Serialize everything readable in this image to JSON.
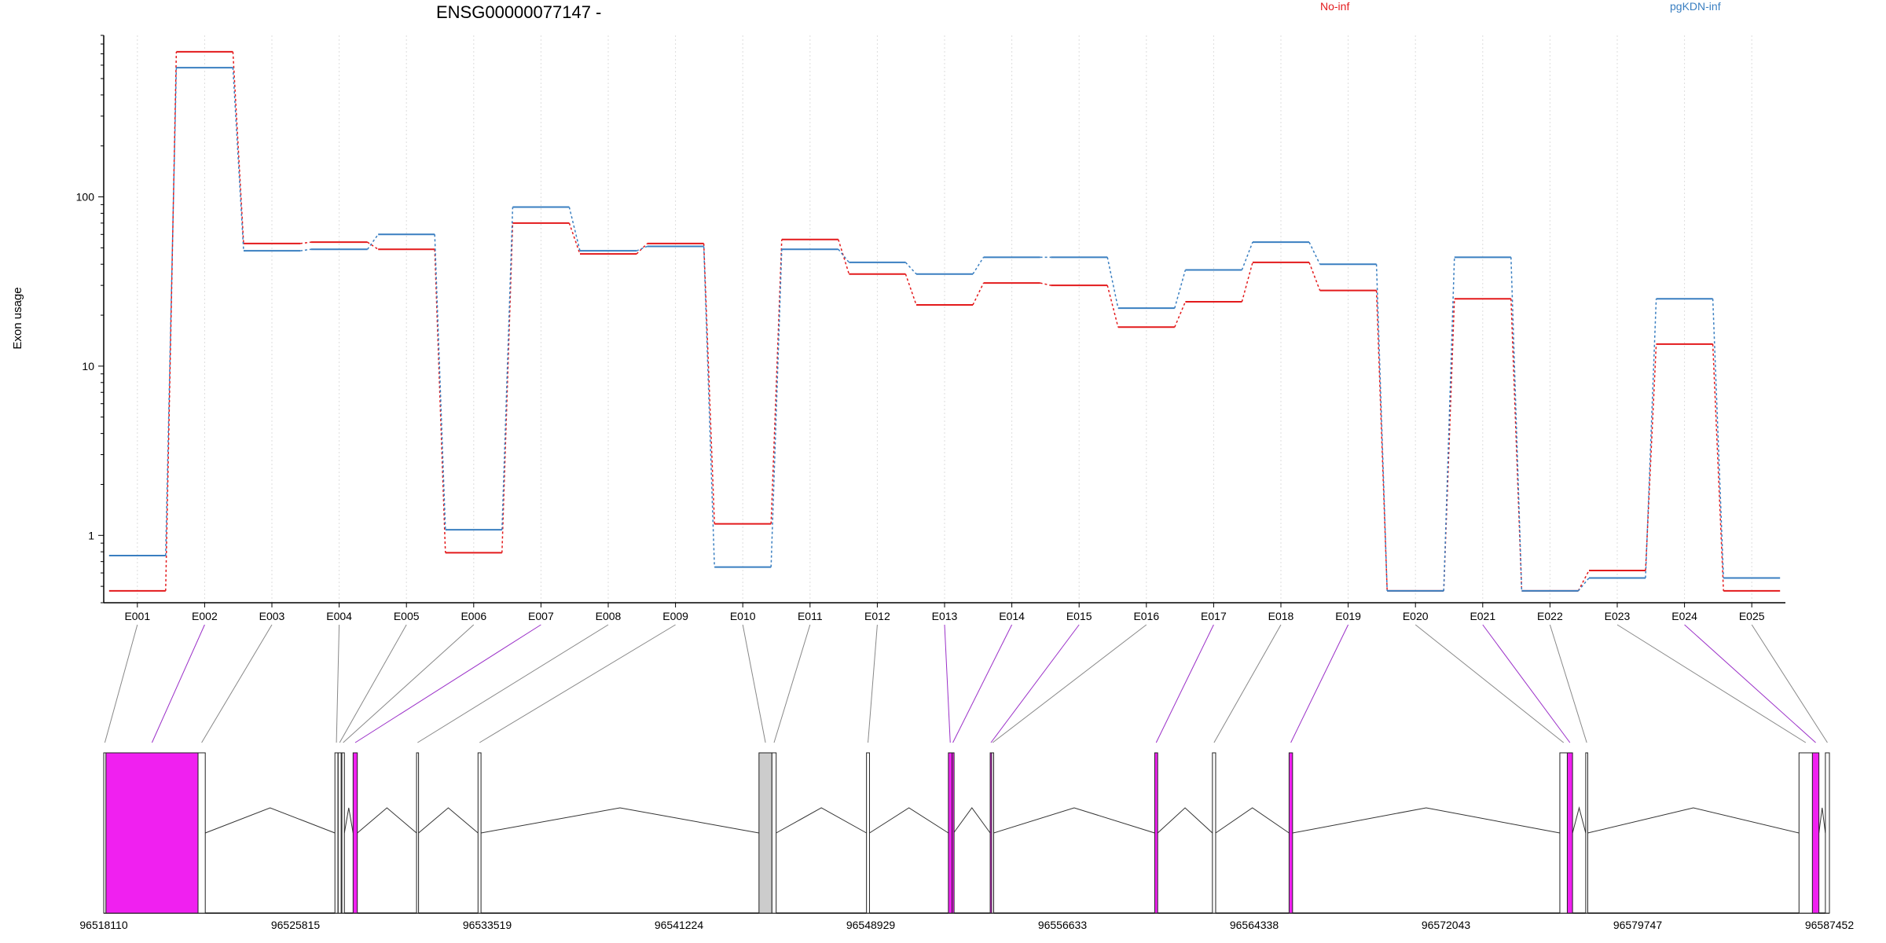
{
  "chart_data": {
    "type": "line",
    "title": "ENSG00000077147 -",
    "ylabel": "Exon usage",
    "yscale": "log",
    "ylim": [
      0.4,
      900
    ],
    "yticks": [
      1,
      10,
      100
    ],
    "ytick_labels": [
      "1",
      "10",
      "100"
    ],
    "grid": "vertical dotted per exon",
    "legend_position": "top-right",
    "categories": [
      "E001",
      "E002",
      "E003",
      "E004",
      "E005",
      "E006",
      "E007",
      "E008",
      "E009",
      "E010",
      "E011",
      "E012",
      "E013",
      "E014",
      "E015",
      "E016",
      "E017",
      "E018",
      "E019",
      "E020",
      "E021",
      "E022",
      "E023",
      "E024",
      "E025"
    ],
    "series": [
      {
        "name": "No-inf",
        "color": "#e31a1c",
        "values": [
          0.47,
          720,
          53,
          54,
          49,
          0.79,
          70,
          46,
          53,
          1.17,
          56,
          35,
          23,
          31,
          30,
          17,
          24,
          41,
          28,
          0.47,
          25,
          0.47,
          0.62,
          13.5,
          0.47
        ]
      },
      {
        "name": "pgKDN-inf",
        "color": "#3a7fc1",
        "values": [
          0.76,
          580,
          48,
          49,
          60,
          1.08,
          87,
          48,
          51,
          0.65,
          49,
          41,
          35,
          44,
          44,
          22,
          37,
          54,
          40,
          0.47,
          44,
          0.47,
          0.56,
          25,
          0.56
        ]
      }
    ],
    "gene_model": {
      "coordinate_ticks": [
        "96518110",
        "96525815",
        "96533519",
        "96541224",
        "96548929",
        "96556633",
        "96564338",
        "96572043",
        "96579747",
        "96587452"
      ],
      "genomic_start": 96518110,
      "genomic_end": 96587452,
      "colors": {
        "significant": "#f020f0",
        "normal": "#ffffff",
        "shaded": "#cccccc",
        "connector_significant": "#9b30c8",
        "connector_normal": "#888888"
      },
      "exons": [
        {
          "id": "E001",
          "start": 96518110,
          "end": 96518200,
          "fill": "normal",
          "significant": false
        },
        {
          "id": "E002",
          "start": 96518200,
          "end": 96521900,
          "fill": "significant",
          "significant": true
        },
        {
          "id": "E003",
          "start": 96521900,
          "end": 96522190,
          "fill": "normal",
          "significant": false
        },
        {
          "id": "E004",
          "start": 96527400,
          "end": 96527520,
          "fill": "normal",
          "significant": false
        },
        {
          "id": "E005",
          "start": 96527530,
          "end": 96527650,
          "fill": "normal",
          "significant": false
        },
        {
          "id": "E006",
          "start": 96527680,
          "end": 96527780,
          "fill": "normal",
          "significant": false
        },
        {
          "id": "E007",
          "start": 96528130,
          "end": 96528300,
          "fill": "significant",
          "significant": true
        },
        {
          "id": "E008",
          "start": 96530680,
          "end": 96530760,
          "fill": "normal",
          "significant": false
        },
        {
          "id": "E009",
          "start": 96533150,
          "end": 96533270,
          "fill": "normal",
          "significant": false
        },
        {
          "id": "E010",
          "start": 96544440,
          "end": 96544960,
          "fill": "shaded",
          "significant": false
        },
        {
          "id": "E011",
          "start": 96544960,
          "end": 96545130,
          "fill": "normal",
          "significant": false
        },
        {
          "id": "E012",
          "start": 96548760,
          "end": 96548880,
          "fill": "normal",
          "significant": false
        },
        {
          "id": "E013",
          "start": 96552050,
          "end": 96552200,
          "fill": "significant",
          "significant": true
        },
        {
          "id": "E014",
          "start": 96552200,
          "end": 96552260,
          "fill": "significant",
          "significant": true
        },
        {
          "id": "E015",
          "start": 96553730,
          "end": 96553790,
          "fill": "significant",
          "significant": true
        },
        {
          "id": "E016",
          "start": 96553790,
          "end": 96553870,
          "fill": "normal",
          "significant": false
        },
        {
          "id": "E017",
          "start": 96560340,
          "end": 96560460,
          "fill": "significant",
          "significant": true
        },
        {
          "id": "E018",
          "start": 96562660,
          "end": 96562790,
          "fill": "normal",
          "significant": false
        },
        {
          "id": "E019",
          "start": 96565740,
          "end": 96565880,
          "fill": "significant",
          "significant": true
        },
        {
          "id": "E020",
          "start": 96576620,
          "end": 96576920,
          "fill": "normal",
          "significant": false
        },
        {
          "id": "E021",
          "start": 96576920,
          "end": 96577130,
          "fill": "significant",
          "significant": true
        },
        {
          "id": "E022",
          "start": 96577660,
          "end": 96577740,
          "fill": "normal",
          "significant": false
        },
        {
          "id": "E023",
          "start": 96586230,
          "end": 96586770,
          "fill": "normal",
          "significant": false
        },
        {
          "id": "E024",
          "start": 96586770,
          "end": 96587030,
          "fill": "significant",
          "significant": true
        },
        {
          "id": "E025",
          "start": 96587290,
          "end": 96587452,
          "fill": "normal",
          "significant": false
        }
      ]
    }
  }
}
